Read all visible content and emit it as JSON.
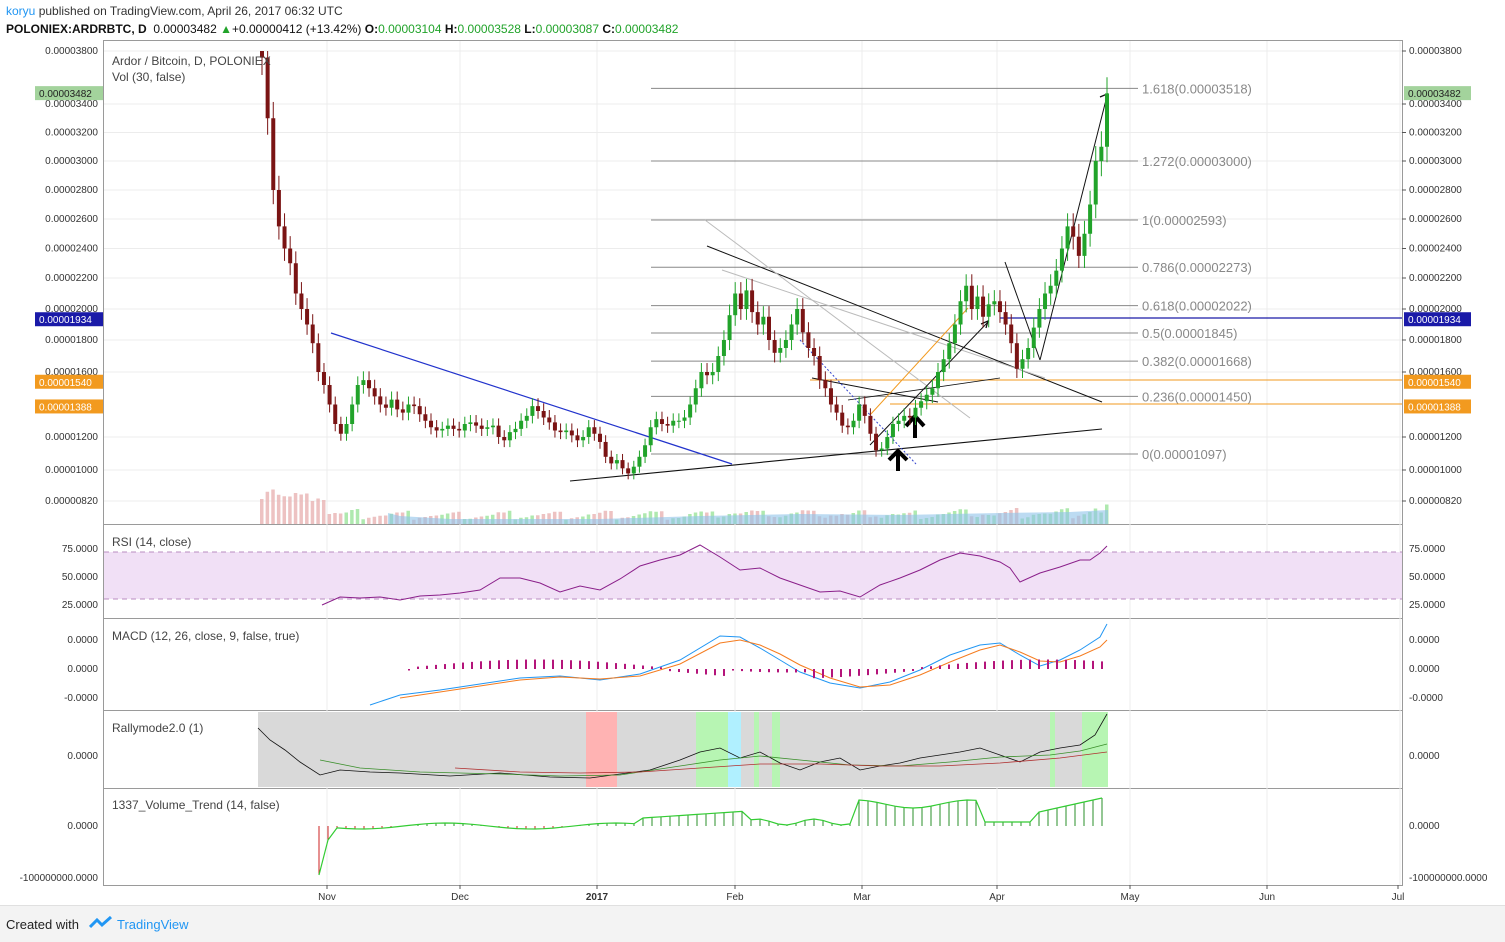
{
  "header": {
    "user": "koryu",
    "published": "published on TradingView.com, April 26, 2017 06:32 UTC",
    "symbol": "POLONIEX:ARDRBTC, D",
    "last": "0.00003482",
    "change": "+0.00000412 (+13.42%)",
    "o_label": "O:",
    "o": "0.00003104",
    "h_label": "H:",
    "h": "0.00003528",
    "l_label": "L:",
    "l": "0.00003087",
    "c_label": "C:",
    "c": "0.00003482"
  },
  "footer": {
    "created_with": "Created with",
    "brand": "TradingView"
  },
  "colors": {
    "up": "#21a32a",
    "down": "#7a1414",
    "blue_line": "#2233cc",
    "orange": "#f29a1f",
    "price_tag": "#a3d39c",
    "rsi_fill": "#f1e0f6",
    "rally_bg": "#d9d9d9"
  },
  "chart_data": {
    "type": "candlestick",
    "title": "Ardor / Bitcoin, D, POLONIEX",
    "subtitle": "Vol (30, false)",
    "x_ticks": [
      "Nov",
      "Dec",
      "2017",
      "Feb",
      "Mar",
      "Apr",
      "May",
      "Jun",
      "Jul"
    ],
    "y_ticks": [
      "0.00003800",
      "0.00003400",
      "0.00003200",
      "0.00003000",
      "0.00002800",
      "0.00002600",
      "0.00002400",
      "0.00002200",
      "0.00002000",
      "0.00001800",
      "0.00001600",
      "0.00001200",
      "0.00001000",
      "0.00000820"
    ],
    "ylim": [
      7.2e-06,
      3.87e-05
    ],
    "price_tags": [
      {
        "value": "0.00003482",
        "color": "#a3d39c"
      },
      {
        "value": "0.00001934",
        "color": "#1a1aa8"
      },
      {
        "value": "0.00001540",
        "color": "#f29a1f"
      },
      {
        "value": "0.00001388",
        "color": "#f29a1f"
      }
    ],
    "fib_levels": [
      {
        "label": "1.618(0.00003518)",
        "value": 3.518e-05
      },
      {
        "label": "1.272(0.00003000)",
        "value": 3e-05
      },
      {
        "label": "1(0.00002593)",
        "value": 2.593e-05
      },
      {
        "label": "0.786(0.00002273)",
        "value": 2.273e-05
      },
      {
        "label": "0.618(0.00002022)",
        "value": 2.022e-05
      },
      {
        "label": "0.5(0.00001845)",
        "value": 1.845e-05
      },
      {
        "label": "0.382(0.00001668)",
        "value": 1.668e-05
      },
      {
        "label": "0.236(0.00001450)",
        "value": 1.45e-05
      },
      {
        "label": "0(0.00001097)",
        "value": 1.097e-05
      }
    ],
    "close_series": [
      3.75e-05,
      3.3e-05,
      2.8e-05,
      2.55e-05,
      2.4e-05,
      2.3e-05,
      2.1e-05,
      2e-05,
      1.9e-05,
      1.78e-05,
      1.6e-05,
      1.52e-05,
      1.4e-05,
      1.28e-05,
      1.22e-05,
      1.28e-05,
      1.4e-05,
      1.52e-05,
      1.55e-05,
      1.5e-05,
      1.45e-05,
      1.4e-05,
      1.38e-05,
      1.43e-05,
      1.37e-05,
      1.35e-05,
      1.4e-05,
      1.39e-05,
      1.34e-05,
      1.3e-05,
      1.26e-05,
      1.24e-05,
      1.25e-05,
      1.27e-05,
      1.25e-05,
      1.24e-05,
      1.28e-05,
      1.29e-05,
      1.27e-05,
      1.25e-05,
      1.26e-05,
      1.27e-05,
      1.2e-05,
      1.18e-05,
      1.23e-05,
      1.25e-05,
      1.3e-05,
      1.33e-05,
      1.39e-05,
      1.36e-05,
      1.32e-05,
      1.29e-05,
      1.24e-05,
      1.23e-05,
      1.24e-05,
      1.21e-05,
      1.18e-05,
      1.2e-05,
      1.26e-05,
      1.22e-05,
      1.17e-05,
      1.08e-05,
      1.04e-05,
      1.06e-05,
      1.01e-05,
      9.8e-06,
      1.02e-05,
      1.08e-05,
      1.15e-05,
      1.26e-05,
      1.31e-05,
      1.28e-05,
      1.27e-05,
      1.3e-05,
      1.3e-05,
      1.32e-05,
      1.4e-05,
      1.5e-05,
      1.6e-05,
      1.58e-05,
      1.6e-05,
      1.7e-05,
      1.8e-05,
      1.96e-05,
      2.1e-05,
      2e-05,
      2.12e-05,
      1.98e-05,
      1.9e-05,
      1.95e-05,
      1.8e-05,
      1.72e-05,
      1.75e-05,
      1.8e-05,
      1.9e-05,
      2e-05,
      1.85e-05,
      1.75e-05,
      1.7e-05,
      1.55e-05,
      1.5e-05,
      1.4e-05,
      1.35e-05,
      1.27e-05,
      1.26e-05,
      1.3e-05,
      1.4e-05,
      1.33e-05,
      1.22e-05,
      1.12e-05,
      1.13e-05,
      1.2e-05,
      1.28e-05,
      1.3e-05,
      1.33e-05,
      1.32e-05,
      1.38e-05,
      1.42e-05,
      1.46e-05,
      1.5e-05,
      1.6e-05,
      1.68e-05,
      1.78e-05,
      1.9e-05,
      2.05e-05,
      2.15e-05,
      2e-05,
      2.08e-05,
      1.95e-05,
      2.03e-05,
      2.05e-05,
      1.98e-05,
      1.9e-05,
      1.78e-05,
      1.62e-05,
      1.68e-05,
      1.75e-05,
      1.88e-05,
      2e-05,
      2.1e-05,
      2.15e-05,
      2.25e-05,
      2.4e-05,
      2.55e-05,
      2.48e-05,
      2.35e-05,
      2.5e-05,
      2.7e-05,
      3e-05,
      3.1e-05,
      3.48e-05
    ]
  },
  "rsi": {
    "label": "RSI (14, close)",
    "ticks": [
      "75.0000",
      "50.0000",
      "25.0000"
    ],
    "right_ticks": [
      "75.0000",
      "50.0000",
      "25.0000"
    ]
  },
  "macd": {
    "label": "MACD (12, 26, close, 9, false, true)",
    "ticks": [
      "0.0000",
      "0.0000",
      "-0.0000"
    ]
  },
  "rally": {
    "label": "Rallymode2.0 (1)",
    "ticks": [
      "0.0000"
    ]
  },
  "vt": {
    "label": "1337_Volume_Trend (14, false)",
    "ticks": [
      "0.0000",
      "-100000000.0000"
    ]
  }
}
